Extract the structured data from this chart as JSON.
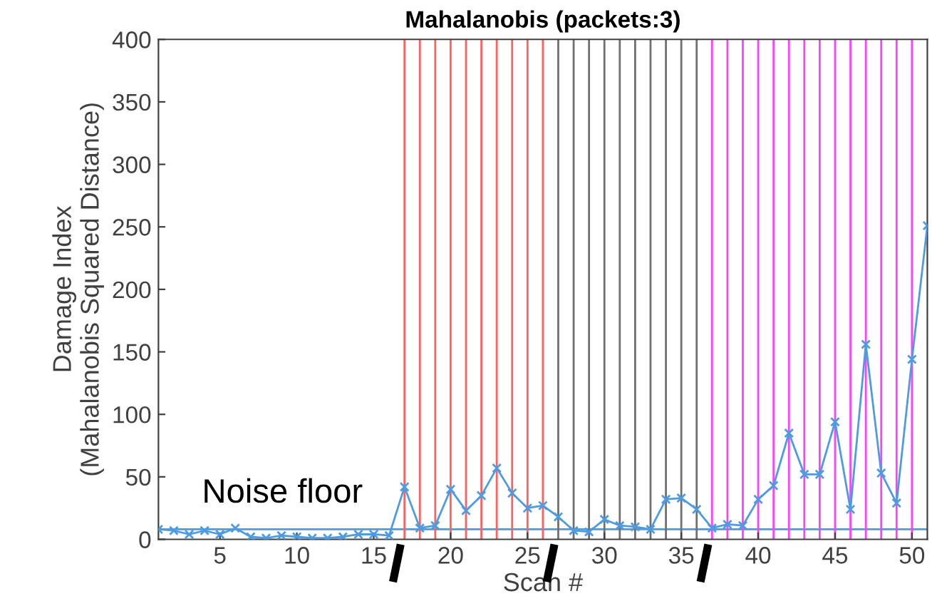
{
  "chart_data": {
    "type": "line",
    "title": "Mahalanobis (packets:3)",
    "xlabel": "Scan #",
    "ylabel": "Damage Index\n(Mahalanobis Squared Distance)",
    "x": [
      1,
      2,
      3,
      4,
      5,
      6,
      7,
      8,
      9,
      10,
      11,
      12,
      13,
      14,
      15,
      16,
      17,
      18,
      19,
      20,
      21,
      22,
      23,
      24,
      25,
      26,
      27,
      28,
      29,
      30,
      31,
      32,
      33,
      34,
      35,
      36,
      37,
      38,
      39,
      40,
      41,
      42,
      43,
      44,
      45,
      46,
      47,
      48,
      49,
      50,
      51
    ],
    "series": [
      {
        "color": "#4d9be0",
        "values": [
          8,
          7,
          4,
          7,
          4,
          9,
          2,
          1,
          3,
          2,
          1,
          1,
          2,
          4,
          4,
          3,
          42,
          9,
          11,
          40,
          23,
          35,
          57,
          37,
          25,
          27,
          18,
          7,
          6,
          16,
          11,
          10,
          8,
          32,
          33,
          24,
          9,
          12,
          11,
          32,
          43,
          85,
          52,
          52,
          94,
          24,
          156,
          53,
          29,
          144,
          251
        ]
      }
    ],
    "marker": "cross",
    "line_style": "solid",
    "xlim": [
      1,
      51
    ],
    "ylim": [
      0,
      400
    ],
    "xticks": [
      5,
      10,
      15,
      20,
      25,
      30,
      35,
      40,
      45,
      50
    ],
    "yticks": [
      0,
      50,
      100,
      150,
      200,
      250,
      300,
      350,
      400
    ],
    "grid": false,
    "ref_lines": [
      {
        "axis": "y",
        "value": 8,
        "label": "Noise floor",
        "color": "#4d9be0"
      },
      {
        "axis": "x",
        "value": 17,
        "color": "#ff6060"
      },
      {
        "axis": "x",
        "value": 18,
        "color": "#ff6060"
      },
      {
        "axis": "x",
        "value": 19,
        "color": "#ff6060"
      },
      {
        "axis": "x",
        "value": 20,
        "color": "#ff6060"
      },
      {
        "axis": "x",
        "value": 21,
        "color": "#ff6060"
      },
      {
        "axis": "x",
        "value": 22,
        "color": "#ff6060"
      },
      {
        "axis": "x",
        "value": 23,
        "color": "#ff6060"
      },
      {
        "axis": "x",
        "value": 24,
        "color": "#ff6060"
      },
      {
        "axis": "x",
        "value": 25,
        "color": "#ff6060"
      },
      {
        "axis": "x",
        "value": 26,
        "color": "#ff6060"
      },
      {
        "axis": "x",
        "value": 27,
        "color": "#707070"
      },
      {
        "axis": "x",
        "value": 28,
        "color": "#707070"
      },
      {
        "axis": "x",
        "value": 29,
        "color": "#707070"
      },
      {
        "axis": "x",
        "value": 30,
        "color": "#707070"
      },
      {
        "axis": "x",
        "value": 31,
        "color": "#707070"
      },
      {
        "axis": "x",
        "value": 32,
        "color": "#707070"
      },
      {
        "axis": "x",
        "value": 33,
        "color": "#707070"
      },
      {
        "axis": "x",
        "value": 34,
        "color": "#707070"
      },
      {
        "axis": "x",
        "value": 35,
        "color": "#707070"
      },
      {
        "axis": "x",
        "value": 36,
        "color": "#707070"
      },
      {
        "axis": "x",
        "value": 37,
        "color": "#ff40ff"
      },
      {
        "axis": "x",
        "value": 38,
        "color": "#ff40ff"
      },
      {
        "axis": "x",
        "value": 39,
        "color": "#ff40ff"
      },
      {
        "axis": "x",
        "value": 40,
        "color": "#ff40ff"
      },
      {
        "axis": "x",
        "value": 41,
        "color": "#ff40ff"
      },
      {
        "axis": "x",
        "value": 42,
        "color": "#ff40ff"
      },
      {
        "axis": "x",
        "value": 43,
        "color": "#ff40ff"
      },
      {
        "axis": "x",
        "value": 44,
        "color": "#ff40ff"
      },
      {
        "axis": "x",
        "value": 45,
        "color": "#ff40ff"
      },
      {
        "axis": "x",
        "value": 46,
        "color": "#ff40ff"
      },
      {
        "axis": "x",
        "value": 47,
        "color": "#ff40ff"
      },
      {
        "axis": "x",
        "value": 48,
        "color": "#ff40ff"
      },
      {
        "axis": "x",
        "value": 49,
        "color": "#ff40ff"
      },
      {
        "axis": "x",
        "value": 50,
        "color": "#ff40ff"
      }
    ]
  }
}
